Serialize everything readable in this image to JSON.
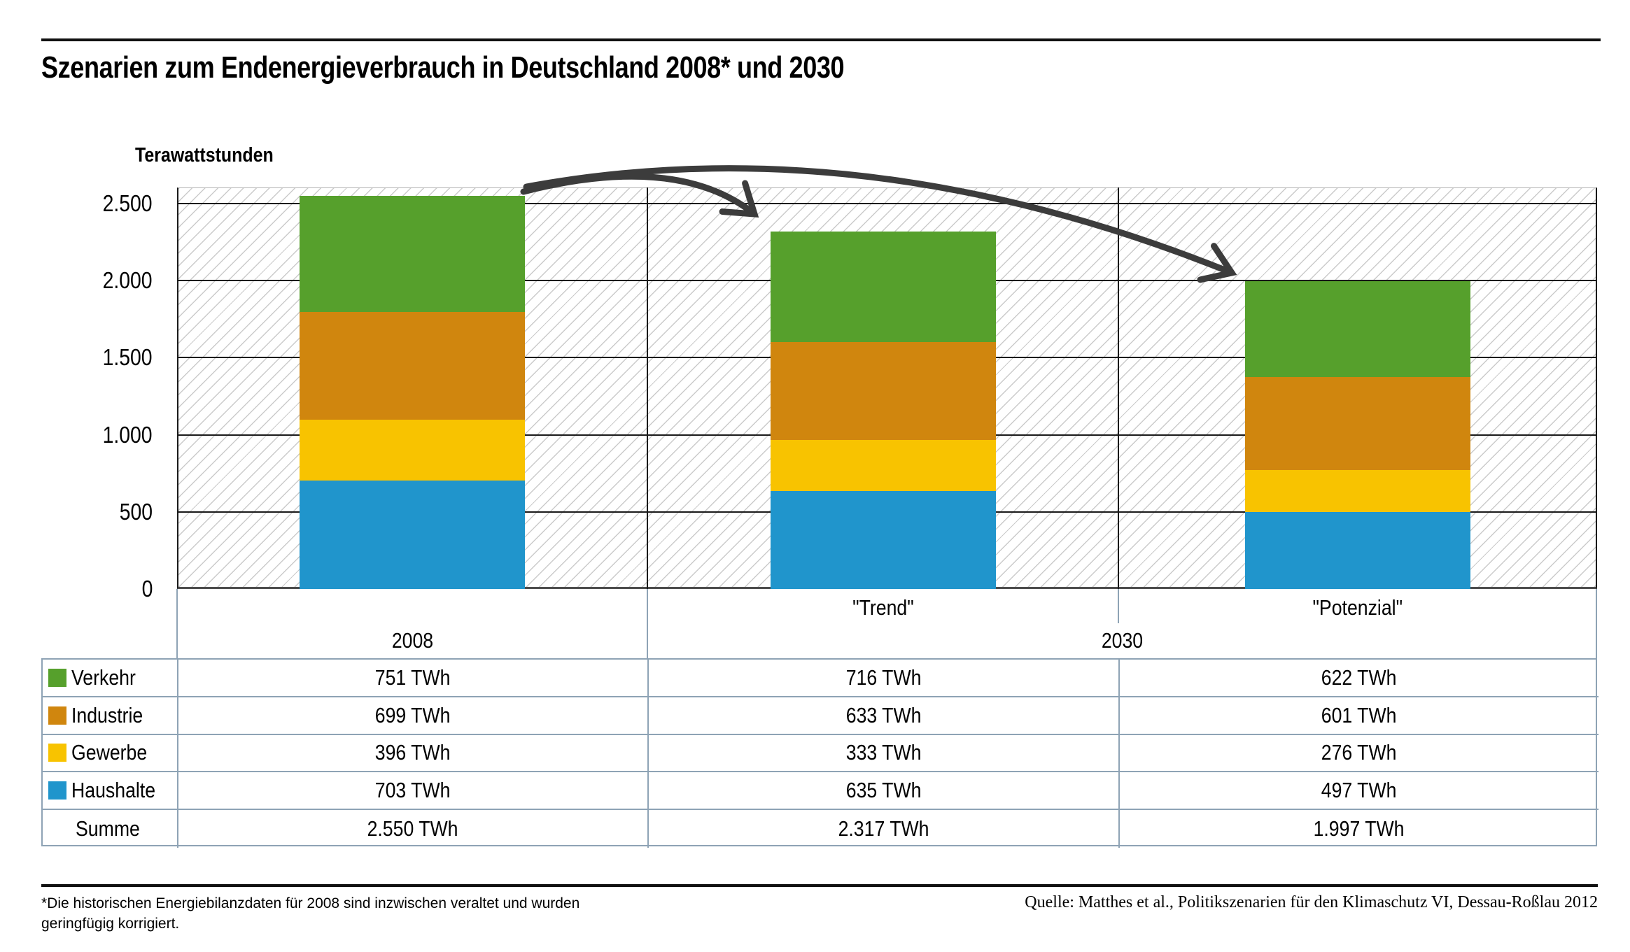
{
  "title": "Szenarien zum Endenergieverbrauch in Deutschland 2008* und 2030",
  "axis": {
    "unit_label": "Terawattstunden",
    "ticks": [
      {
        "label": "2.500",
        "value": 2500
      },
      {
        "label": "2.000",
        "value": 2000
      },
      {
        "label": "1.500",
        "value": 1500
      },
      {
        "label": "1.000",
        "value": 1000
      },
      {
        "label": "500",
        "value": 500
      },
      {
        "label": "0",
        "value": 0
      }
    ]
  },
  "chart_data": {
    "type": "bar",
    "stacked": true,
    "unit": "TWh",
    "title": "Szenarien zum Endenergieverbrauch in Deutschland 2008* und 2030",
    "ylabel": "Terawattstunden",
    "ylim": [
      0,
      2600
    ],
    "ytick_step": 500,
    "grid": true,
    "categories": [
      "2008",
      "\"Trend\"",
      "\"Potenzial\""
    ],
    "series": [
      {
        "name": "Verkehr",
        "color": "#56A02C",
        "values": [
          751,
          716,
          622
        ]
      },
      {
        "name": "Industrie",
        "color": "#D0860E",
        "values": [
          699,
          633,
          601
        ]
      },
      {
        "name": "Gewerbe",
        "color": "#F8C300",
        "values": [
          396,
          333,
          276
        ]
      },
      {
        "name": "Haushalte",
        "color": "#2095CC",
        "values": [
          703,
          635,
          497
        ]
      }
    ],
    "totals": [
      2550,
      2317,
      1997
    ],
    "annotations": "Two curved arrows from the top of the 2008 bar point to the tops of the \"Trend\" and \"Potenzial\" bars"
  },
  "header": {
    "year_left": "2008",
    "year_right": "2030",
    "scenario_trend": "\"Trend\"",
    "scenario_potenzial": "\"Potenzial\""
  },
  "table": {
    "rows": [
      {
        "label": "Verkehr",
        "swatch": "#56A02C",
        "values": [
          "751 TWh",
          "716 TWh",
          "622 TWh"
        ]
      },
      {
        "label": "Industrie",
        "swatch": "#D0860E",
        "values": [
          "699 TWh",
          "633 TWh",
          "601 TWh"
        ]
      },
      {
        "label": "Gewerbe",
        "swatch": "#F8C300",
        "values": [
          "396 TWh",
          "333 TWh",
          "276 TWh"
        ]
      },
      {
        "label": "Haushalte",
        "swatch": "#2095CC",
        "values": [
          "703 TWh",
          "635 TWh",
          "497 TWh"
        ]
      },
      {
        "label": "Summe",
        "swatch": null,
        "values": [
          "2.550 TWh",
          "2.317 TWh",
          "1.997 TWh"
        ]
      }
    ]
  },
  "footnote_line1": "*Die historischen Energiebilanzdaten für 2008 sind inzwischen veraltet und wurden",
  "footnote_line2": "geringfügig korrigiert.",
  "source": "Quelle: Matthes et al., Politikszenarien für den Klimaschutz VI, Dessau-Roßlau 2012",
  "colors": {
    "table_line": "#8EA3B5",
    "grid_line": "#1A1A1A",
    "arrow": "#3C3C3C",
    "hatch": "#CBCBCB"
  }
}
